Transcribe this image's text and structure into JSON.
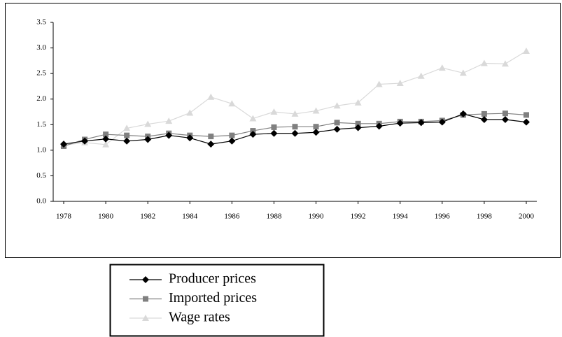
{
  "chart_data": {
    "type": "line",
    "x": [
      1978,
      1979,
      1980,
      1981,
      1982,
      1983,
      1984,
      1985,
      1986,
      1987,
      1988,
      1989,
      1990,
      1991,
      1992,
      1993,
      1994,
      1995,
      1996,
      1997,
      1998,
      1999,
      2000
    ],
    "xlim": [
      1977.5,
      2000.5
    ],
    "xticks": [
      1978,
      1980,
      1982,
      1984,
      1986,
      1988,
      1990,
      1992,
      1994,
      1996,
      1998,
      2000
    ],
    "ylim": [
      0,
      3.5
    ],
    "yticks": [
      {
        "value": 0,
        "label": "0.0"
      },
      0.5,
      {
        "value": 1,
        "label": "1.0"
      },
      1.5,
      {
        "value": 2,
        "label": "2.0"
      },
      2.5,
      {
        "value": 3,
        "label": "3.0"
      },
      3.5
    ],
    "series": [
      {
        "name": "Producer prices",
        "color": "#000000",
        "marker": "diamond",
        "values": [
          1.12,
          1.18,
          1.22,
          1.18,
          1.21,
          1.29,
          1.24,
          1.12,
          1.18,
          1.31,
          1.33,
          1.33,
          1.35,
          1.41,
          1.44,
          1.47,
          1.53,
          1.54,
          1.55,
          1.71,
          1.6,
          1.6,
          1.55
        ]
      },
      {
        "name": "Imported prices",
        "color": "#808080",
        "marker": "square",
        "values": [
          1.08,
          1.21,
          1.31,
          1.29,
          1.27,
          1.33,
          1.29,
          1.27,
          1.29,
          1.38,
          1.45,
          1.46,
          1.46,
          1.54,
          1.52,
          1.52,
          1.56,
          1.56,
          1.58,
          1.69,
          1.71,
          1.72,
          1.69
        ]
      },
      {
        "name": "Wage rates",
        "color": "#d9d9d9",
        "marker": "triangle",
        "values": [
          1.1,
          1.15,
          1.11,
          1.43,
          1.51,
          1.57,
          1.73,
          2.04,
          1.91,
          1.62,
          1.75,
          1.71,
          1.77,
          1.87,
          1.93,
          2.29,
          2.31,
          2.45,
          2.61,
          2.51,
          2.7,
          2.69,
          2.94
        ]
      }
    ]
  }
}
